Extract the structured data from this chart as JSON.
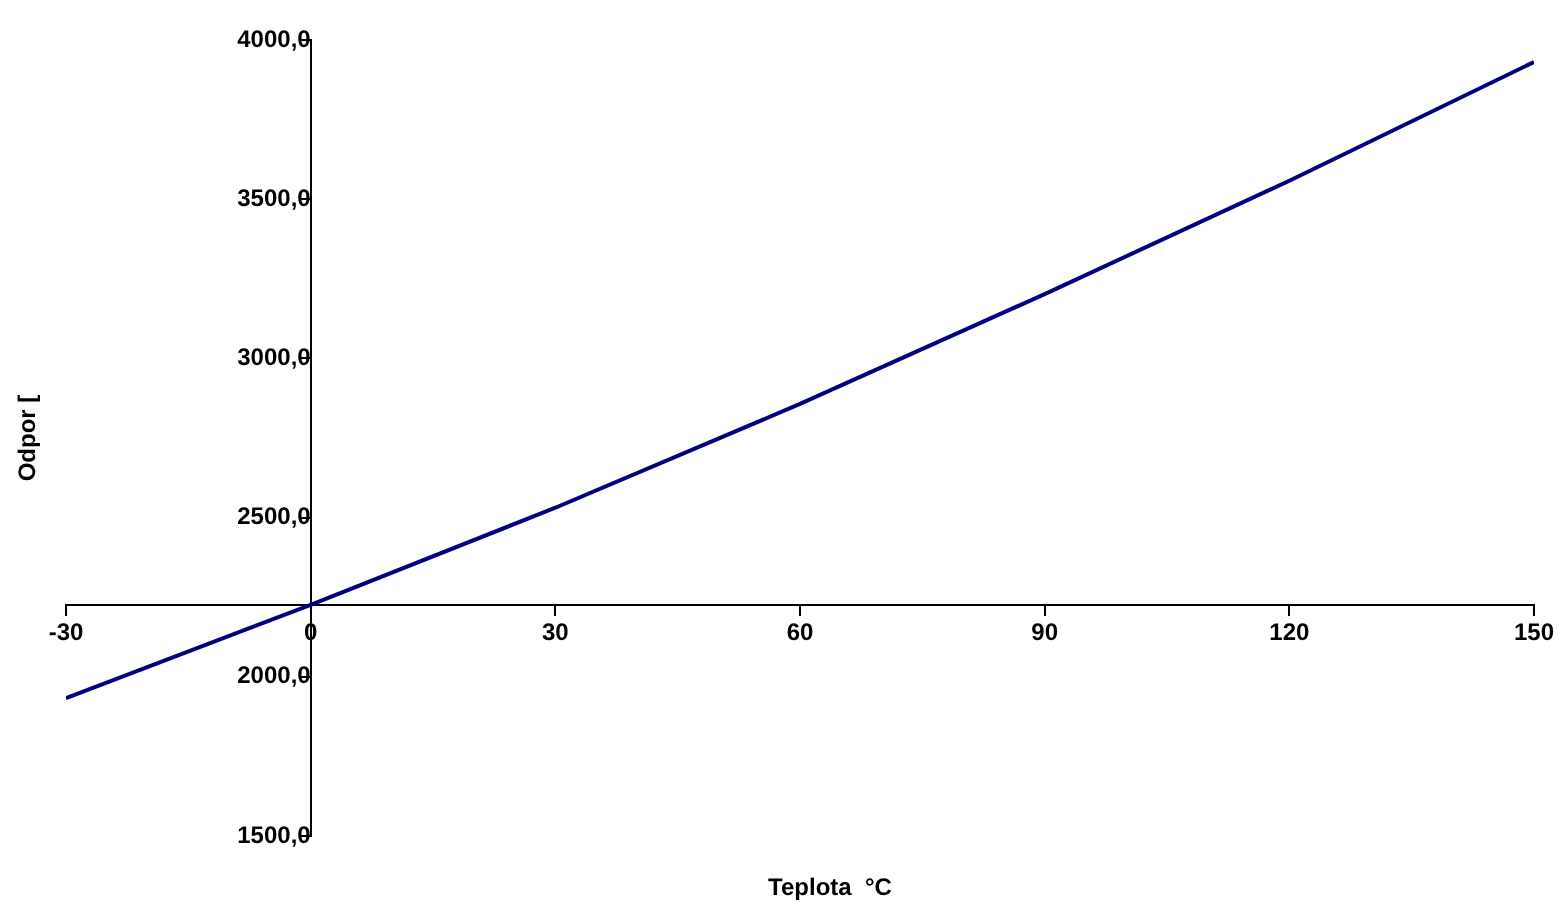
{
  "chart_data": {
    "type": "line",
    "xlabel": "Teplota  °C",
    "ylabel": "Odpor [",
    "x": [
      -30,
      0,
      30,
      60,
      90,
      120,
      150
    ],
    "series": [
      {
        "color": "#000080",
        "values": [
          1933,
          2226,
          2531,
          2857,
          3202,
          3558,
          3931
        ]
      }
    ],
    "xlim": [
      -30,
      150
    ],
    "xticks": [
      -30,
      0,
      30,
      60,
      90,
      120,
      150
    ],
    "ylim": [
      1500,
      4000
    ],
    "yticks": [
      {
        "value": 1500,
        "label": "1500,0"
      },
      {
        "value": 2000,
        "label": "2000,0"
      },
      {
        "value": 2500,
        "label": "2500,0"
      },
      {
        "value": 3000,
        "label": "3000,0"
      },
      {
        "value": 3500,
        "label": "3500,0"
      },
      {
        "value": 4000,
        "label": "4000,0"
      }
    ],
    "grid": false,
    "legend": false,
    "marker": "none",
    "line_style": "solid"
  }
}
